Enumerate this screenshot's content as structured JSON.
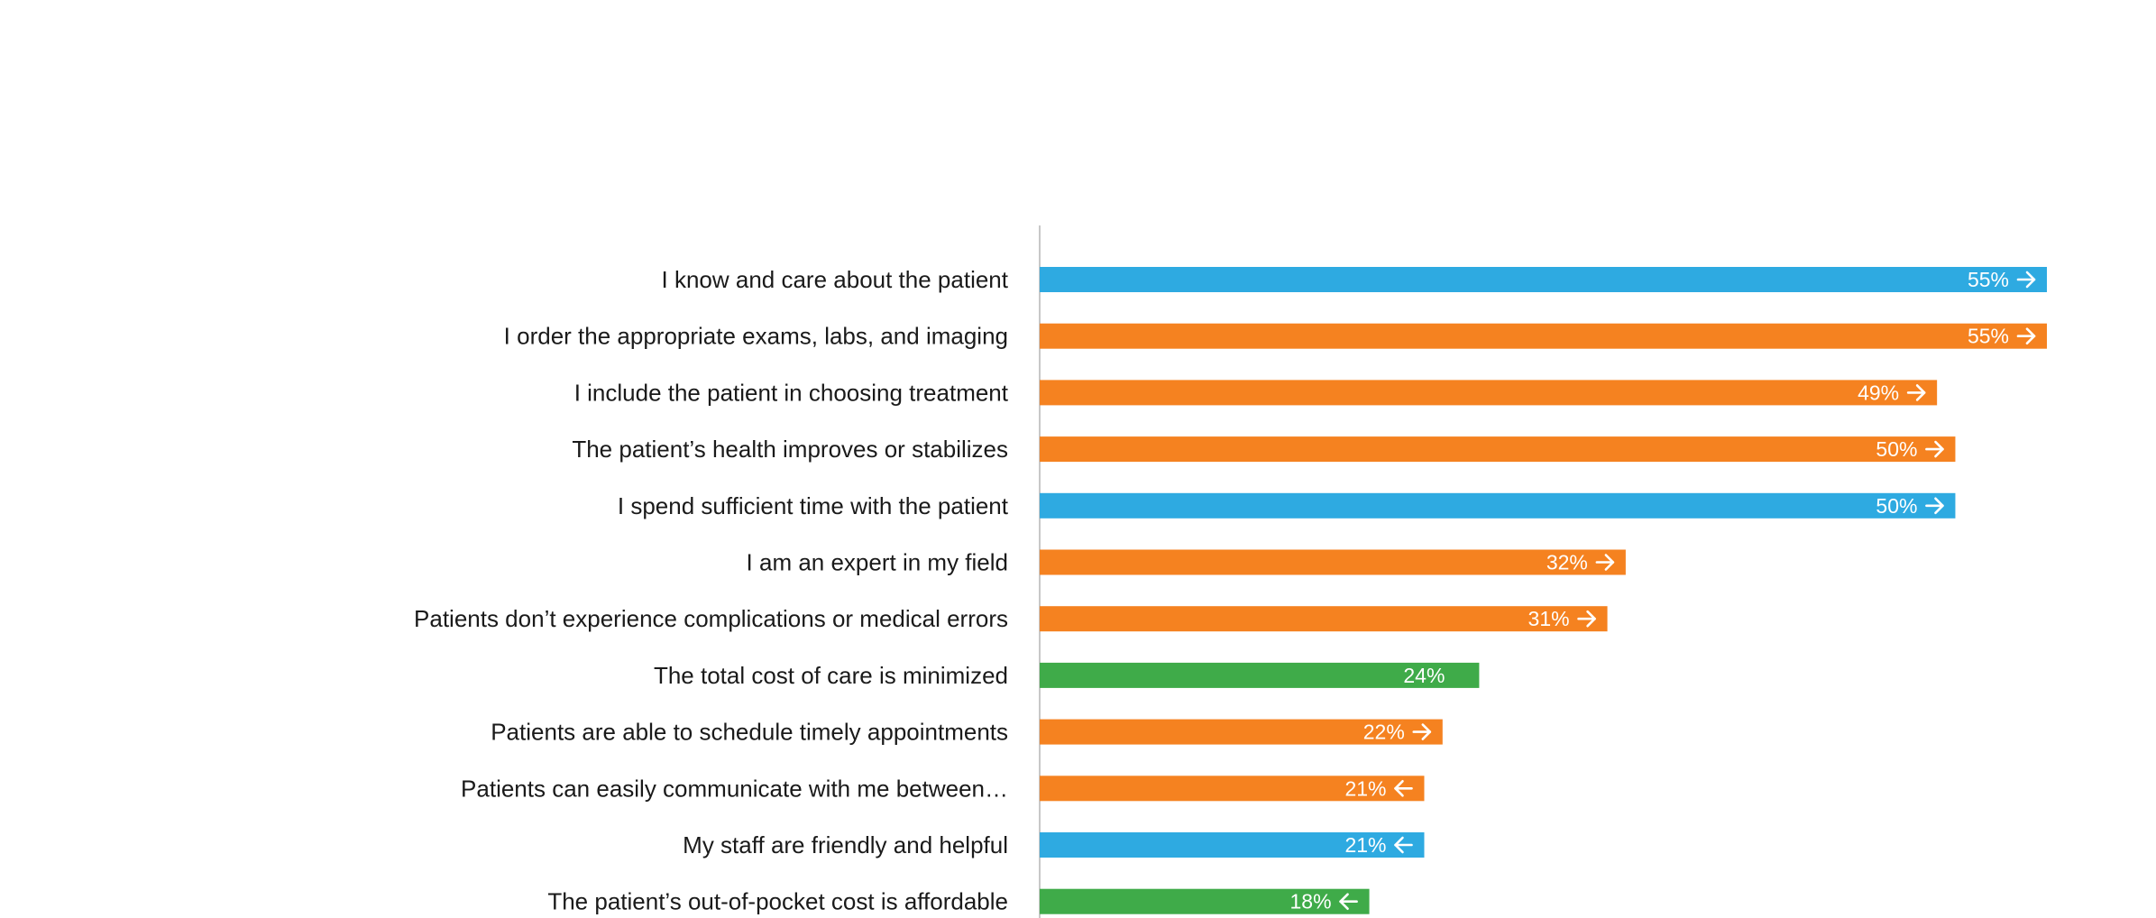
{
  "chart_data": {
    "type": "bar",
    "orientation": "horizontal",
    "title": "",
    "xlabel": "",
    "ylabel": "",
    "xlim": [
      0,
      100
    ],
    "grid": false,
    "legend": "none",
    "colors": {
      "blue": "#2eaae1",
      "orange": "#f58220",
      "green": "#3fab49"
    },
    "categories": [
      "I know and care about the patient",
      "I order the appropriate exams, labs, and imaging",
      "I include the patient in choosing treatment",
      "The patient’s health improves or stabilizes",
      "I spend sufficient time with the patient",
      "I am an expert in my field",
      "Patients don’t experience complications or medical errors",
      "The total cost of care is minimized",
      "Patients are able to schedule timely appointments",
      "Patients can easily communicate with me between…",
      "My staff are friendly and helpful",
      "The patient’s out-of-pocket cost is affordable"
    ],
    "values": [
      55,
      55,
      49,
      50,
      50,
      32,
      31,
      24,
      22,
      21,
      21,
      18
    ],
    "value_labels": [
      "55%",
      "55%",
      "49%",
      "50%",
      "50%",
      "32%",
      "31%",
      "24%",
      "22%",
      "21%",
      "21%",
      "18%"
    ],
    "bar_colors": [
      "blue",
      "orange",
      "orange",
      "orange",
      "blue",
      "orange",
      "orange",
      "green",
      "orange",
      "orange",
      "blue",
      "green"
    ],
    "arrows": [
      "right",
      "right",
      "right",
      "right",
      "right",
      "right",
      "right",
      "none",
      "right",
      "left",
      "left",
      "left"
    ]
  }
}
